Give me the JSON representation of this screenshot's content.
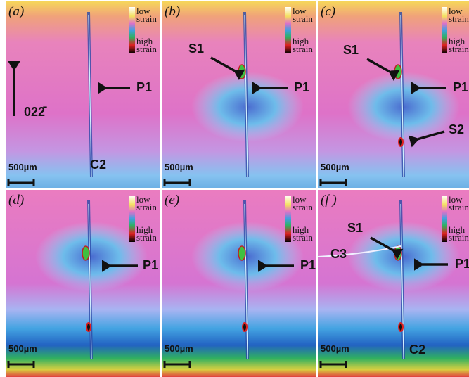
{
  "panels": [
    {
      "label": "(a)",
      "legend_low": [
        "low",
        "strain"
      ],
      "legend_high": [
        "high",
        "strain"
      ],
      "scale_bar": "500µm",
      "annotations": [
        "022̄",
        "P1",
        "C2"
      ]
    },
    {
      "label": "(b)",
      "legend_low": [
        "low",
        "strain"
      ],
      "legend_high": [
        "high",
        "strain"
      ],
      "scale_bar": "500µm",
      "annotations": [
        "S1",
        "P1"
      ]
    },
    {
      "label": "(c)",
      "legend_low": [
        "low",
        "strain"
      ],
      "legend_high": [
        "high",
        "strain"
      ],
      "scale_bar": "500µm",
      "annotations": [
        "S1",
        "P1",
        "S2"
      ]
    },
    {
      "label": "(d)",
      "legend_low": [
        "low",
        "strain"
      ],
      "legend_high": [
        "high",
        "strain"
      ],
      "scale_bar": "500µm",
      "annotations": [
        "P1"
      ]
    },
    {
      "label": "(e)",
      "legend_low": [
        "low",
        "strain"
      ],
      "legend_high": [
        "high",
        "strain"
      ],
      "scale_bar": "500µm",
      "annotations": [
        "P1"
      ]
    },
    {
      "label": "(f )",
      "legend_low": [
        "low",
        "strain"
      ],
      "legend_high": [
        "high",
        "strain"
      ],
      "scale_bar": "500µm",
      "annotations": [
        "S1",
        "C3",
        "P1",
        "C2"
      ]
    }
  ]
}
